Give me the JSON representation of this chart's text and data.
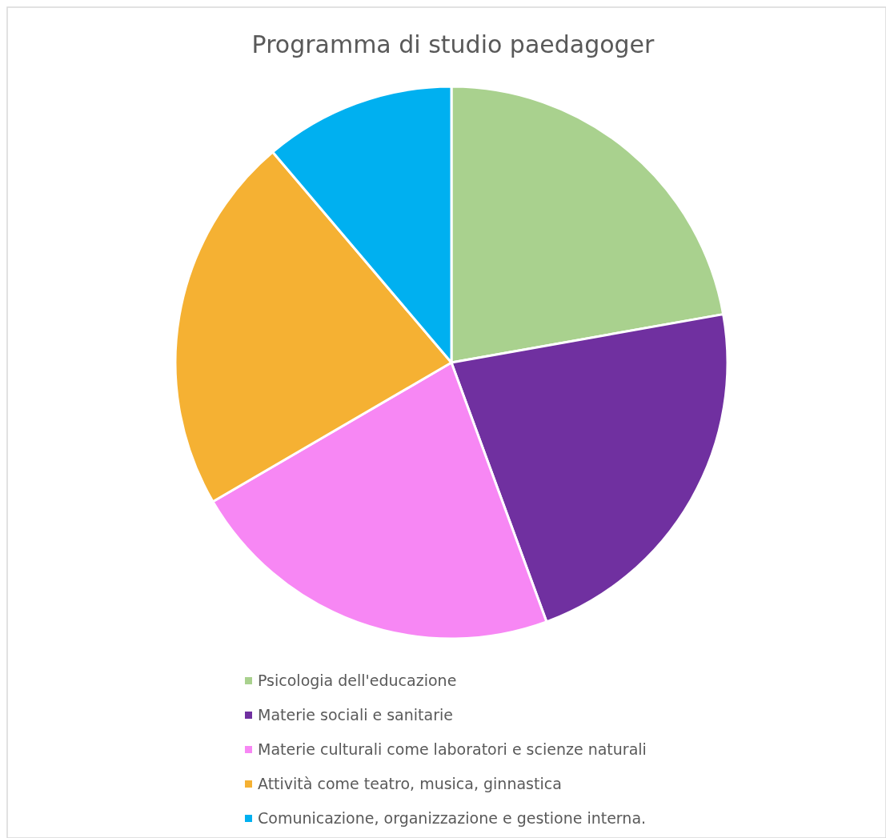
{
  "chart_data": {
    "type": "pie",
    "title": "Programma di studio paedagoger",
    "categories": [
      "Psicologia dell'educazione",
      "Materie sociali e sanitarie",
      "Materie culturali come laboratori e scienze naturali",
      "Attività come teatro, musica, ginnastica",
      "Comunicazione, organizzazione e gestione interna."
    ],
    "values": [
      22.2,
      22.2,
      22.2,
      22.2,
      11.2
    ],
    "colors": [
      "#a9d18e",
      "#7030a0",
      "#f787f4",
      "#f5b133",
      "#00b0f0"
    ],
    "legend": "bottom"
  }
}
